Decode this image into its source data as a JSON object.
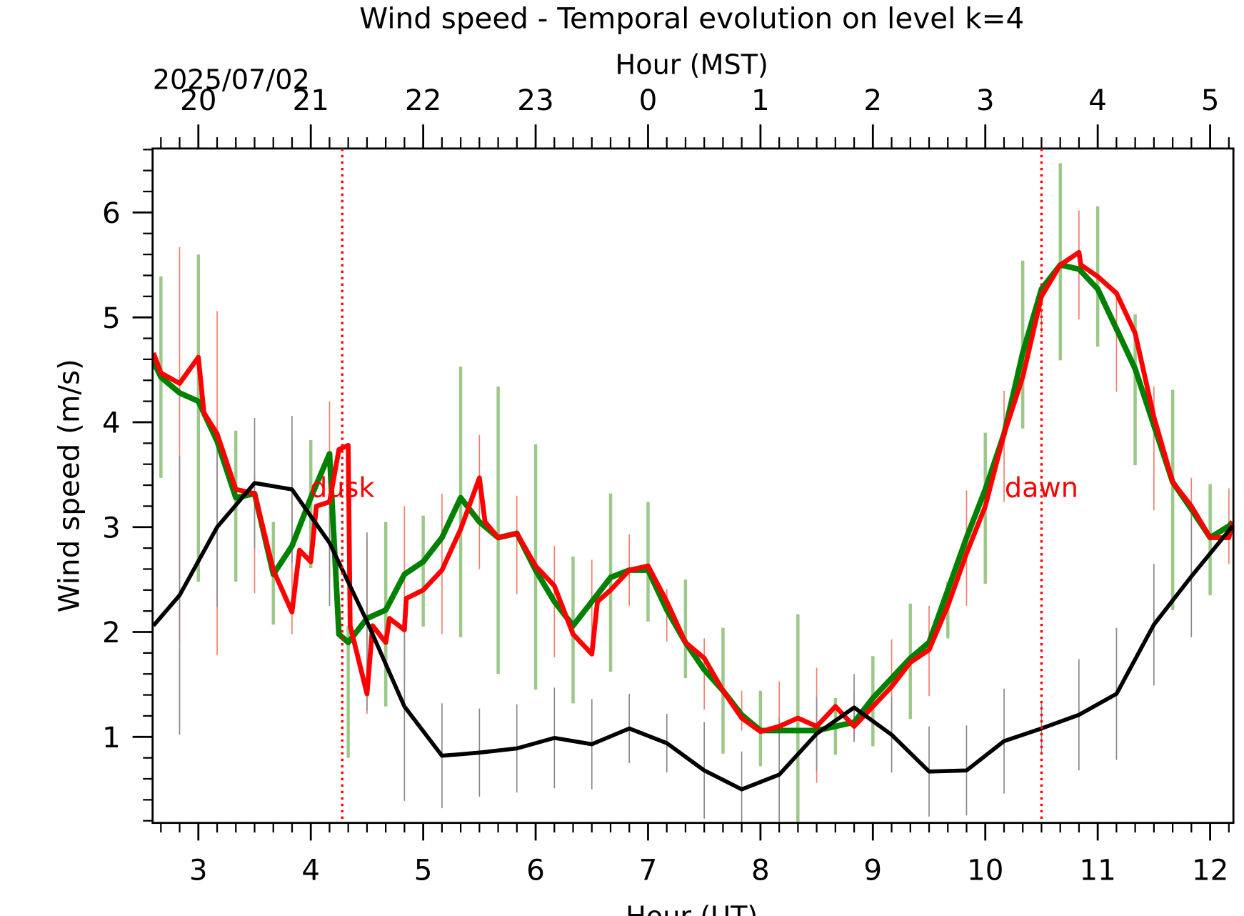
{
  "chart_data": {
    "type": "line",
    "title": "Wind speed - Temporal evolution on level k=4",
    "xlabel": "Hour (UT)",
    "x2label": "Hour (MST)",
    "ylabel": "Wind speed (m/s)",
    "date_label": "2025/07/02",
    "xlim": [
      2.593,
      12.207
    ],
    "ylim": [
      0.18,
      6.61
    ],
    "xticks": [
      3,
      4,
      5,
      6,
      7,
      8,
      9,
      10,
      11,
      12
    ],
    "x2ticks": [
      {
        "value": 3,
        "label": "20"
      },
      {
        "value": 4,
        "label": "21"
      },
      {
        "value": 5,
        "label": "22"
      },
      {
        "value": 6,
        "label": "23"
      },
      {
        "value": 7,
        "label": "0"
      },
      {
        "value": 8,
        "label": "1"
      },
      {
        "value": 9,
        "label": "2"
      },
      {
        "value": 10,
        "label": "3"
      },
      {
        "value": 11,
        "label": "4"
      },
      {
        "value": 12,
        "label": "5"
      }
    ],
    "yticks": [
      1,
      2,
      3,
      4,
      5,
      6
    ],
    "x_minor_per_major": 6,
    "y_minor_per_major": 5,
    "errorbars": [
      {
        "color": "#9cc98a",
        "x": [
          2.667,
          3.0,
          3.333,
          3.667,
          4.0,
          4.333,
          4.667,
          5.0,
          5.333,
          5.667,
          6.0,
          6.333,
          6.667,
          7.0,
          7.333,
          7.667,
          8.0,
          8.333,
          8.667,
          9.0,
          9.333,
          9.667,
          10.0,
          10.333,
          10.667,
          11.0,
          11.333,
          11.667,
          12.0
        ],
        "values": [
          4.43,
          4.04,
          3.2,
          2.56,
          3.22,
          1.43,
          2.17,
          2.58,
          3.24,
          2.97,
          2.62,
          2.02,
          2.47,
          2.67,
          2.03,
          1.44,
          1.08,
          1.18,
          1.1,
          1.34,
          1.72,
          2.21,
          3.18,
          4.74,
          5.53,
          5.39,
          4.31,
          3.26,
          2.88
        ],
        "errors": [
          0.96,
          1.56,
          0.72,
          0.49,
          0.61,
          0.63,
          0.88,
          0.53,
          1.29,
          1.37,
          1.17,
          0.7,
          0.85,
          0.57,
          0.47,
          0.6,
          0.36,
          0.99,
          0.27,
          0.43,
          0.55,
          0.27,
          0.72,
          0.8,
          0.94,
          0.67,
          0.72,
          1.05,
          0.53
        ],
        "width": 4
      },
      {
        "color": "#f08070",
        "x": [
          2.833,
          3.167,
          3.5,
          3.833,
          4.167,
          4.5,
          4.833,
          5.167,
          5.5,
          5.833,
          6.167,
          6.5,
          6.833,
          7.167,
          7.5,
          7.833,
          8.167,
          8.5,
          8.833,
          9.167,
          9.5,
          9.833,
          10.167,
          10.5,
          10.833,
          11.167,
          11.5,
          11.833,
          12.167
        ],
        "values": [
          3.79,
          3.42,
          2.94,
          2.91,
          3.36,
          2.06,
          2.36,
          2.65,
          3.24,
          2.83,
          2.29,
          2.28,
          2.59,
          2.16,
          1.6,
          1.25,
          1.24,
          1.11,
          1.19,
          1.5,
          1.82,
          2.8,
          3.77,
          4.97,
          5.5,
          4.74,
          3.75,
          3.09,
          3.01
        ],
        "errors": [
          1.88,
          1.64,
          0.57,
          0.93,
          0.84,
          0.84,
          0.84,
          0.67,
          0.64,
          0.47,
          0.53,
          0.41,
          0.34,
          0.25,
          0.34,
          0.19,
          0.29,
          0.55,
          0.24,
          0.43,
          0.43,
          0.55,
          0.53,
          0.12,
          0.52,
          0.45,
          0.59,
          0.38,
          0.36
        ],
        "width": 1.5
      },
      {
        "color": "#8a8a8a",
        "x": [
          2.833,
          3.167,
          3.5,
          3.833,
          4.167,
          4.5,
          4.833,
          5.167,
          5.5,
          5.833,
          6.167,
          6.5,
          6.833,
          7.167,
          7.5,
          7.833,
          8.167,
          8.5,
          8.833,
          9.167,
          9.5,
          9.833,
          10.167,
          10.5,
          10.833,
          11.167,
          11.5,
          11.833
        ],
        "values": [
          2.35,
          3.0,
          3.42,
          3.36,
          2.85,
          2.1,
          1.29,
          0.82,
          0.85,
          0.89,
          0.99,
          0.93,
          1.08,
          0.94,
          0.68,
          0.5,
          0.64,
          1.03,
          1.28,
          1.02,
          0.67,
          0.68,
          0.96,
          1.08,
          1.21,
          1.41,
          2.07,
          2.53
        ],
        "errors": [
          1.33,
          0.76,
          0.62,
          0.7,
          0.6,
          0.85,
          0.9,
          0.5,
          0.42,
          0.42,
          0.48,
          0.43,
          0.33,
          0.28,
          0.46,
          0.36,
          0.55,
          0.35,
          0.32,
          0.36,
          0.43,
          0.43,
          0.5,
          0.25,
          0.53,
          0.63,
          0.58,
          0.58
        ],
        "width": 1.5
      }
    ],
    "series": [
      {
        "color": "#008000",
        "width": 7,
        "x": [
          2.6,
          2.667,
          2.833,
          3.0,
          3.167,
          3.333,
          3.5,
          3.667,
          3.833,
          4.0,
          4.167,
          4.25,
          4.333,
          4.5,
          4.667,
          4.833,
          5.0,
          5.167,
          5.333,
          5.5,
          5.667,
          5.833,
          6.0,
          6.167,
          6.333,
          6.5,
          6.667,
          6.833,
          7.0,
          7.167,
          7.333,
          7.5,
          7.667,
          7.833,
          8.0,
          8.167,
          8.333,
          8.5,
          8.667,
          8.833,
          9.0,
          9.167,
          9.333,
          9.5,
          9.667,
          9.833,
          10.0,
          10.167,
          10.333,
          10.5,
          10.667,
          10.833,
          11.0,
          11.167,
          11.333,
          11.5,
          11.667,
          11.833,
          12.0,
          12.167,
          12.2
        ],
        "values": [
          4.58,
          4.43,
          4.28,
          4.2,
          3.82,
          3.28,
          3.32,
          2.55,
          2.82,
          3.28,
          3.7,
          1.98,
          1.9,
          2.13,
          2.21,
          2.55,
          2.67,
          2.9,
          3.28,
          3.05,
          2.9,
          2.94,
          2.59,
          2.29,
          2.06,
          2.29,
          2.52,
          2.59,
          2.59,
          2.21,
          1.9,
          1.64,
          1.44,
          1.21,
          1.06,
          1.06,
          1.06,
          1.06,
          1.1,
          1.14,
          1.37,
          1.56,
          1.75,
          1.9,
          2.4,
          2.9,
          3.36,
          3.89,
          4.66,
          5.27,
          5.5,
          5.46,
          5.27,
          4.89,
          4.51,
          3.97,
          3.43,
          3.17,
          2.9,
          3.01,
          3.05
        ]
      },
      {
        "color": "#ff0000",
        "width": 6,
        "x": [
          2.6,
          2.667,
          2.833,
          3.0,
          3.05,
          3.167,
          3.333,
          3.5,
          3.667,
          3.833,
          3.9,
          4.0,
          4.05,
          4.167,
          4.25,
          4.333,
          4.35,
          4.5,
          4.55,
          4.667,
          4.7,
          4.833,
          4.85,
          5.0,
          5.167,
          5.333,
          5.5,
          5.55,
          5.667,
          5.833,
          6.0,
          6.167,
          6.333,
          6.5,
          6.55,
          6.667,
          6.833,
          7.0,
          7.167,
          7.333,
          7.5,
          7.667,
          7.833,
          8.0,
          8.167,
          8.333,
          8.5,
          8.667,
          8.833,
          9.0,
          9.167,
          9.333,
          9.5,
          9.667,
          9.833,
          10.0,
          10.167,
          10.333,
          10.5,
          10.667,
          10.833,
          10.85,
          11.0,
          11.167,
          11.333,
          11.5,
          11.667,
          11.833,
          12.0,
          12.167,
          12.2
        ],
        "values": [
          4.66,
          4.47,
          4.37,
          4.62,
          4.09,
          3.89,
          3.36,
          3.32,
          2.59,
          2.19,
          2.78,
          2.67,
          3.2,
          3.24,
          3.74,
          3.78,
          2.06,
          1.41,
          2.06,
          1.9,
          2.13,
          2.02,
          2.32,
          2.4,
          2.59,
          2.98,
          3.47,
          3.05,
          2.9,
          2.94,
          2.63,
          2.44,
          1.98,
          1.79,
          2.29,
          2.4,
          2.59,
          2.63,
          2.29,
          1.9,
          1.75,
          1.44,
          1.18,
          1.05,
          1.1,
          1.18,
          1.1,
          1.29,
          1.1,
          1.29,
          1.48,
          1.71,
          1.83,
          2.25,
          2.75,
          3.2,
          3.89,
          4.43,
          5.2,
          5.5,
          5.62,
          5.5,
          5.39,
          5.23,
          4.85,
          4.05,
          3.43,
          3.2,
          2.9,
          2.9,
          3.05
        ]
      },
      {
        "color": "#000000",
        "width": 5,
        "x": [
          2.6,
          2.833,
          3.167,
          3.5,
          3.833,
          4.167,
          4.5,
          4.833,
          5.167,
          5.5,
          5.833,
          6.167,
          6.5,
          6.833,
          7.167,
          7.5,
          7.833,
          8.167,
          8.5,
          8.833,
          9.167,
          9.5,
          9.833,
          10.167,
          10.5,
          10.833,
          11.167,
          11.5,
          11.833,
          12.2
        ],
        "values": [
          2.06,
          2.35,
          3.0,
          3.42,
          3.36,
          2.85,
          2.1,
          1.29,
          0.82,
          0.85,
          0.89,
          0.99,
          0.93,
          1.08,
          0.94,
          0.68,
          0.5,
          0.64,
          1.03,
          1.28,
          1.02,
          0.67,
          0.68,
          0.96,
          1.08,
          1.21,
          1.41,
          2.07,
          2.53,
          3.01
        ]
      }
    ],
    "annotations": [
      {
        "text": "dusk",
        "x": 4.28,
        "y": 3.38,
        "color": "#ff0000"
      },
      {
        "text": "dawn",
        "x": 10.5,
        "y": 3.38,
        "color": "#ff0000"
      }
    ]
  }
}
